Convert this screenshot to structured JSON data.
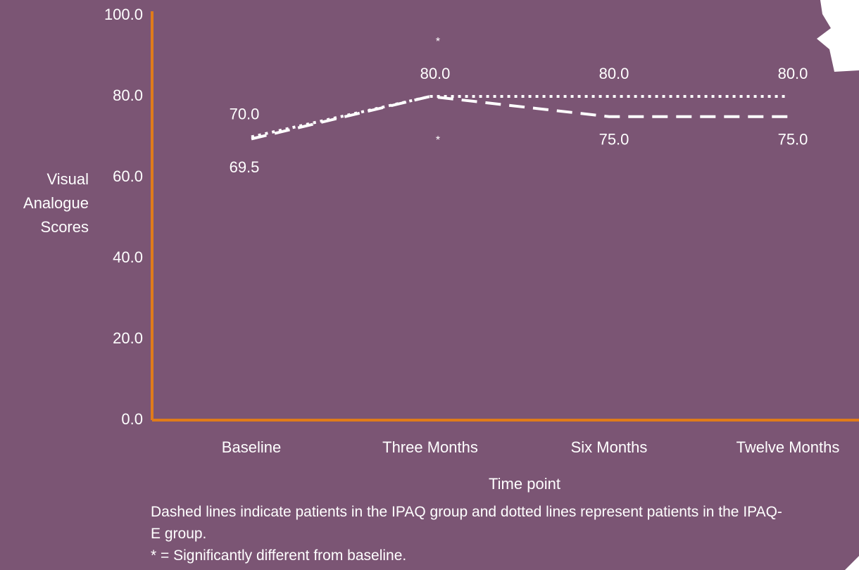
{
  "chart_data": {
    "type": "line",
    "y_label": "Visual Analogue Scores",
    "x_label": "Time point",
    "categories": [
      "Baseline",
      "Three Months",
      "Six Months",
      "Twelve Months"
    ],
    "series": [
      {
        "color": "#ffffff",
        "dash": "dotted",
        "values": [
          70,
          80,
          80,
          80
        ],
        "value_labels": [
          "70.0",
          "80.0",
          "80.0",
          "80.0"
        ]
      },
      {
        "color": "#ffffff",
        "dash": "dashed",
        "values": [
          69.5,
          80,
          75,
          75
        ],
        "value_labels": [
          "69.5",
          null,
          "75.0",
          "75.0"
        ]
      }
    ],
    "annotations": [
      "*",
      "*"
    ],
    "ylim": [
      0,
      100
    ],
    "yticks": [
      {
        "value": 0,
        "label": "0.0"
      },
      {
        "value": 20,
        "label": "20.0"
      },
      {
        "value": 40,
        "label": "40.0"
      },
      {
        "value": 60,
        "label": "60.0"
      },
      {
        "value": 80,
        "label": "80.0"
      },
      {
        "value": 100,
        "label": "100.0"
      }
    ],
    "axis_color": "#e07b1a",
    "notes": [
      "Dashed lines indicate patients in the IPAQ group and dotted lines represent patients in the IPAQ-E group.",
      "* = Significantly different from baseline."
    ]
  }
}
